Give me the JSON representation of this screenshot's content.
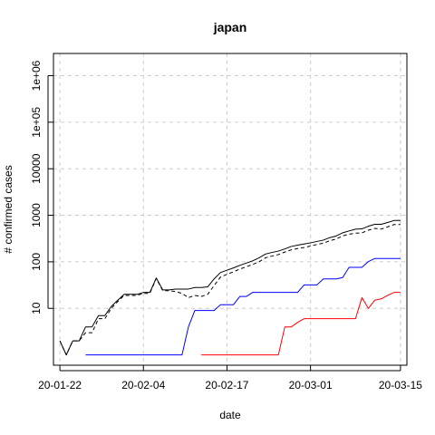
{
  "chart_data": {
    "type": "line",
    "title": "japan",
    "xlabel": "date",
    "ylabel": "# confirmed cases",
    "y_scale": "log",
    "grid": true,
    "x_ticks": [
      "20-01-22",
      "20-02-04",
      "20-02-17",
      "20-03-01",
      "20-03-15"
    ],
    "y_ticks": [
      "10",
      "100",
      "1000",
      "10000",
      "1e+05",
      "1e+06"
    ],
    "y_tick_values": [
      10,
      100,
      1000,
      10000,
      100000,
      1000000
    ],
    "xlim": [
      "2020-01-21",
      "2020-03-16"
    ],
    "ylim": [
      0.6,
      3000000
    ],
    "series": [
      {
        "color": "#000000",
        "dash": "solid",
        "points": [
          [
            "2020-01-22",
            2
          ],
          [
            "2020-01-23",
            1
          ],
          [
            "2020-01-24",
            2
          ],
          [
            "2020-01-25",
            2
          ],
          [
            "2020-01-26",
            4
          ],
          [
            "2020-01-27",
            4
          ],
          [
            "2020-01-28",
            7
          ],
          [
            "2020-01-29",
            7
          ],
          [
            "2020-01-30",
            11
          ],
          [
            "2020-01-31",
            15
          ],
          [
            "2020-02-01",
            20
          ],
          [
            "2020-02-02",
            20
          ],
          [
            "2020-02-03",
            20
          ],
          [
            "2020-02-04",
            22
          ],
          [
            "2020-02-05",
            22
          ],
          [
            "2020-02-06",
            45
          ],
          [
            "2020-02-07",
            25
          ],
          [
            "2020-02-08",
            25
          ],
          [
            "2020-02-09",
            26
          ],
          [
            "2020-02-10",
            26
          ],
          [
            "2020-02-11",
            26
          ],
          [
            "2020-02-12",
            28
          ],
          [
            "2020-02-13",
            28
          ],
          [
            "2020-02-14",
            29
          ],
          [
            "2020-02-15",
            43
          ],
          [
            "2020-02-16",
            59
          ],
          [
            "2020-02-17",
            66
          ],
          [
            "2020-02-18",
            74
          ],
          [
            "2020-02-19",
            84
          ],
          [
            "2020-02-20",
            94
          ],
          [
            "2020-02-21",
            105
          ],
          [
            "2020-02-22",
            122
          ],
          [
            "2020-02-23",
            147
          ],
          [
            "2020-02-24",
            159
          ],
          [
            "2020-02-25",
            170
          ],
          [
            "2020-02-26",
            189
          ],
          [
            "2020-02-27",
            214
          ],
          [
            "2020-02-28",
            228
          ],
          [
            "2020-02-29",
            241
          ],
          [
            "2020-03-01",
            256
          ],
          [
            "2020-03-02",
            274
          ],
          [
            "2020-03-03",
            293
          ],
          [
            "2020-03-04",
            331
          ],
          [
            "2020-03-05",
            360
          ],
          [
            "2020-03-06",
            420
          ],
          [
            "2020-03-07",
            461
          ],
          [
            "2020-03-08",
            502
          ],
          [
            "2020-03-09",
            511
          ],
          [
            "2020-03-10",
            581
          ],
          [
            "2020-03-11",
            639
          ],
          [
            "2020-03-12",
            639
          ],
          [
            "2020-03-13",
            701
          ],
          [
            "2020-03-14",
            773
          ],
          [
            "2020-03-15",
            773
          ]
        ]
      },
      {
        "color": "#000000",
        "dash": "dashed",
        "points": [
          [
            "2020-01-22",
            2
          ],
          [
            "2020-01-23",
            1
          ],
          [
            "2020-01-24",
            2
          ],
          [
            "2020-01-25",
            2
          ],
          [
            "2020-01-26",
            3
          ],
          [
            "2020-01-27",
            3
          ],
          [
            "2020-01-28",
            6
          ],
          [
            "2020-01-29",
            6
          ],
          [
            "2020-01-30",
            10
          ],
          [
            "2020-01-31",
            14
          ],
          [
            "2020-02-01",
            19
          ],
          [
            "2020-02-02",
            19
          ],
          [
            "2020-02-03",
            19
          ],
          [
            "2020-02-04",
            21
          ],
          [
            "2020-02-05",
            21
          ],
          [
            "2020-02-06",
            44
          ],
          [
            "2020-02-07",
            24
          ],
          [
            "2020-02-08",
            24
          ],
          [
            "2020-02-09",
            23
          ],
          [
            "2020-02-10",
            21
          ],
          [
            "2020-02-11",
            17
          ],
          [
            "2020-02-12",
            19
          ],
          [
            "2020-02-13",
            18
          ],
          [
            "2020-02-14",
            20
          ],
          [
            "2020-02-15",
            31
          ],
          [
            "2020-02-16",
            47
          ],
          [
            "2020-02-17",
            54
          ],
          [
            "2020-02-18",
            61
          ],
          [
            "2020-02-19",
            70
          ],
          [
            "2020-02-20",
            78
          ],
          [
            "2020-02-21",
            88
          ],
          [
            "2020-02-22",
            100
          ],
          [
            "2020-02-23",
            122
          ],
          [
            "2020-02-24",
            133
          ],
          [
            "2020-02-25",
            143
          ],
          [
            "2020-02-26",
            162
          ],
          [
            "2020-02-27",
            181
          ],
          [
            "2020-02-28",
            193
          ],
          [
            "2020-02-29",
            203
          ],
          [
            "2020-03-01",
            218
          ],
          [
            "2020-03-02",
            236
          ],
          [
            "2020-03-03",
            252
          ],
          [
            "2020-03-04",
            284
          ],
          [
            "2020-03-05",
            309
          ],
          [
            "2020-03-06",
            361
          ],
          [
            "2020-03-07",
            392
          ],
          [
            "2020-03-08",
            414
          ],
          [
            "2020-03-09",
            418
          ],
          [
            "2020-03-10",
            479
          ],
          [
            "2020-03-11",
            522
          ],
          [
            "2020-03-12",
            505
          ],
          [
            "2020-03-13",
            563
          ],
          [
            "2020-03-14",
            634
          ],
          [
            "2020-03-15",
            634
          ]
        ]
      },
      {
        "color": "#0000ff",
        "dash": "solid",
        "points": [
          [
            "2020-01-26",
            1
          ],
          [
            "2020-01-27",
            1
          ],
          [
            "2020-01-28",
            1
          ],
          [
            "2020-01-29",
            1
          ],
          [
            "2020-01-30",
            1
          ],
          [
            "2020-01-31",
            1
          ],
          [
            "2020-02-01",
            1
          ],
          [
            "2020-02-02",
            1
          ],
          [
            "2020-02-03",
            1
          ],
          [
            "2020-02-04",
            1
          ],
          [
            "2020-02-05",
            1
          ],
          [
            "2020-02-06",
            1
          ],
          [
            "2020-02-07",
            1
          ],
          [
            "2020-02-08",
            1
          ],
          [
            "2020-02-09",
            1
          ],
          [
            "2020-02-10",
            1
          ],
          [
            "2020-02-11",
            4
          ],
          [
            "2020-02-12",
            9
          ],
          [
            "2020-02-13",
            9
          ],
          [
            "2020-02-14",
            9
          ],
          [
            "2020-02-15",
            9
          ],
          [
            "2020-02-16",
            12
          ],
          [
            "2020-02-17",
            12
          ],
          [
            "2020-02-18",
            12
          ],
          [
            "2020-02-19",
            18
          ],
          [
            "2020-02-20",
            18
          ],
          [
            "2020-02-21",
            22
          ],
          [
            "2020-02-22",
            22
          ],
          [
            "2020-02-23",
            22
          ],
          [
            "2020-02-24",
            22
          ],
          [
            "2020-02-25",
            22
          ],
          [
            "2020-02-26",
            22
          ],
          [
            "2020-02-27",
            22
          ],
          [
            "2020-02-28",
            22
          ],
          [
            "2020-02-29",
            32
          ],
          [
            "2020-03-01",
            32
          ],
          [
            "2020-03-02",
            32
          ],
          [
            "2020-03-03",
            43
          ],
          [
            "2020-03-04",
            43
          ],
          [
            "2020-03-05",
            43
          ],
          [
            "2020-03-06",
            46
          ],
          [
            "2020-03-07",
            76
          ],
          [
            "2020-03-08",
            76
          ],
          [
            "2020-03-09",
            76
          ],
          [
            "2020-03-10",
            101
          ],
          [
            "2020-03-11",
            118
          ],
          [
            "2020-03-12",
            118
          ],
          [
            "2020-03-13",
            118
          ],
          [
            "2020-03-14",
            118
          ],
          [
            "2020-03-15",
            118
          ]
        ]
      },
      {
        "color": "#ff0000",
        "dash": "solid",
        "points": [
          [
            "2020-02-13",
            1
          ],
          [
            "2020-02-14",
            1
          ],
          [
            "2020-02-15",
            1
          ],
          [
            "2020-02-16",
            1
          ],
          [
            "2020-02-17",
            1
          ],
          [
            "2020-02-18",
            1
          ],
          [
            "2020-02-19",
            1
          ],
          [
            "2020-02-20",
            1
          ],
          [
            "2020-02-21",
            1
          ],
          [
            "2020-02-22",
            1
          ],
          [
            "2020-02-23",
            1
          ],
          [
            "2020-02-24",
            1
          ],
          [
            "2020-02-25",
            1
          ],
          [
            "2020-02-26",
            4
          ],
          [
            "2020-02-27",
            4
          ],
          [
            "2020-02-28",
            5
          ],
          [
            "2020-02-29",
            6
          ],
          [
            "2020-03-01",
            6
          ],
          [
            "2020-03-02",
            6
          ],
          [
            "2020-03-03",
            6
          ],
          [
            "2020-03-04",
            6
          ],
          [
            "2020-03-05",
            6
          ],
          [
            "2020-03-06",
            6
          ],
          [
            "2020-03-07",
            6
          ],
          [
            "2020-03-08",
            6
          ],
          [
            "2020-03-09",
            17
          ],
          [
            "2020-03-10",
            10
          ],
          [
            "2020-03-11",
            15
          ],
          [
            "2020-03-12",
            16
          ],
          [
            "2020-03-13",
            19
          ],
          [
            "2020-03-14",
            22
          ],
          [
            "2020-03-15",
            22
          ]
        ]
      }
    ]
  }
}
